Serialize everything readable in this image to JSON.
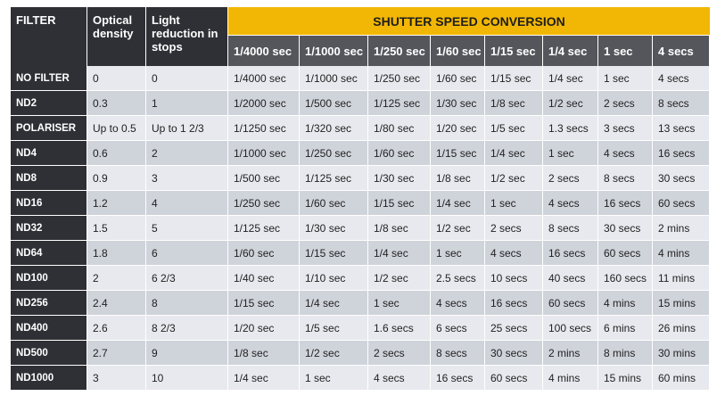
{
  "table": {
    "header": {
      "filter": "FILTER",
      "optical_density": "Optical density",
      "light_reduction": "Light reduction in stops",
      "conversion_title": "SHUTTER SPEED CONVERSION",
      "speeds": [
        "1/4000 sec",
        "1/1000 sec",
        "1/250 sec",
        "1/60 sec",
        "1/15 sec",
        "1/4 sec",
        "1 sec",
        "4 secs"
      ]
    },
    "rows": [
      {
        "filter": "NO FILTER",
        "density": "0",
        "stops": "0",
        "speeds": [
          "1/4000 sec",
          "1/1000 sec",
          "1/250 sec",
          "1/60 sec",
          "1/15 sec",
          "1/4 sec",
          "1 sec",
          "4 secs"
        ]
      },
      {
        "filter": "ND2",
        "density": "0.3",
        "stops": "1",
        "speeds": [
          "1/2000 sec",
          "1/500 sec",
          "1/125 sec",
          "1/30 sec",
          "1/8 sec",
          "1/2 sec",
          "2 secs",
          "8 secs"
        ]
      },
      {
        "filter": "POLARISER",
        "density": "Up to 0.5",
        "stops": "Up to 1 2/3",
        "speeds": [
          "1/1250 sec",
          "1/320 sec",
          "1/80 sec",
          "1/20 sec",
          "1/5 sec",
          "1.3 secs",
          "3 secs",
          "13 secs"
        ]
      },
      {
        "filter": "ND4",
        "density": "0.6",
        "stops": "2",
        "speeds": [
          "1/1000 sec",
          "1/250 sec",
          "1/60 sec",
          "1/15 sec",
          "1/4 sec",
          "1 sec",
          "4 secs",
          "16 secs"
        ]
      },
      {
        "filter": "ND8",
        "density": "0.9",
        "stops": "3",
        "speeds": [
          "1/500 sec",
          "1/125 sec",
          "1/30 sec",
          "1/8 sec",
          "1/2 sec",
          "2 secs",
          "8 secs",
          "30 secs"
        ]
      },
      {
        "filter": "ND16",
        "density": "1.2",
        "stops": "4",
        "speeds": [
          "1/250 sec",
          "1/60 sec",
          "1/15 sec",
          "1/4 sec",
          "1 sec",
          "4 secs",
          "16 secs",
          "60 secs"
        ]
      },
      {
        "filter": "ND32",
        "density": "1.5",
        "stops": "5",
        "speeds": [
          "1/125 sec",
          "1/30 sec",
          "1/8 sec",
          "1/2 sec",
          "2 secs",
          "8 secs",
          "30 secs",
          "2 mins"
        ]
      },
      {
        "filter": "ND64",
        "density": "1.8",
        "stops": "6",
        "speeds": [
          "1/60 sec",
          "1/15 sec",
          "1/4 sec",
          "1 sec",
          "4 secs",
          "16 secs",
          "60 secs",
          "4 mins"
        ]
      },
      {
        "filter": "ND100",
        "density": "2",
        "stops": "6 2/3",
        "speeds": [
          "1/40 sec",
          "1/10 sec",
          "1/2 sec",
          "2.5 secs",
          "10 secs",
          "40 secs",
          "160 secs",
          "11 mins"
        ]
      },
      {
        "filter": "ND256",
        "density": "2.4",
        "stops": "8",
        "speeds": [
          "1/15 sec",
          "1/4 sec",
          "1 sec",
          "4 secs",
          "16 secs",
          "60 secs",
          "4 mins",
          "15 mins"
        ]
      },
      {
        "filter": "ND400",
        "density": "2.6",
        "stops": "8 2/3",
        "speeds": [
          "1/20 sec",
          "1/5 sec",
          "1.6 secs",
          "6 secs",
          "25 secs",
          "100 secs",
          "6 mins",
          "26 mins"
        ]
      },
      {
        "filter": "ND500",
        "density": "2.7",
        "stops": "9",
        "speeds": [
          "1/8 sec",
          "1/2 sec",
          "2 secs",
          "8 secs",
          "30 secs",
          "2 mins",
          "8 mins",
          "30 mins"
        ]
      },
      {
        "filter": "ND1000",
        "density": "3",
        "stops": "10",
        "speeds": [
          "1/4 sec",
          "1 sec",
          "4 secs",
          "16 secs",
          "60 secs",
          "4 mins",
          "15 mins",
          "60 mins"
        ]
      }
    ],
    "colors": {
      "header_dark": "#2f3036",
      "title_yellow": "#f2b705",
      "speed_header": "#54565c",
      "row_light": "#e7e9ee",
      "row_dark": "#cfd3da"
    }
  }
}
